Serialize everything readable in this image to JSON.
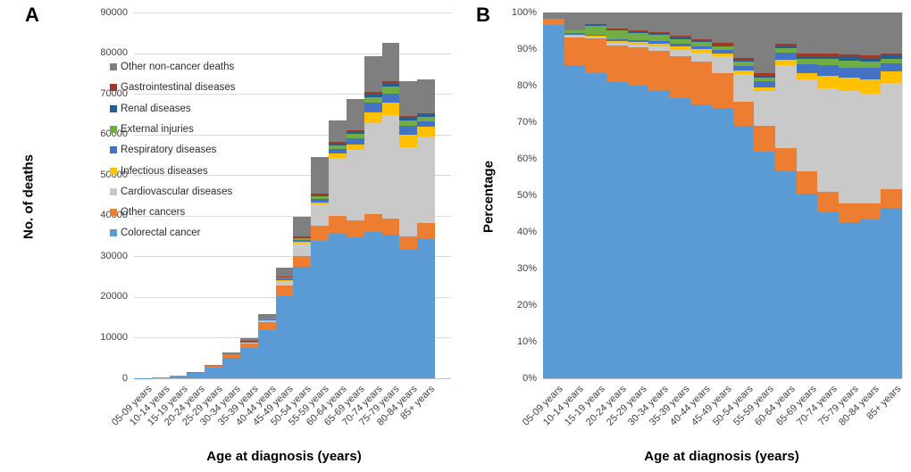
{
  "figure": {
    "panel_a_label": "A",
    "panel_b_label": "B",
    "panel_a_y_title": "No. of deaths",
    "panel_b_y_title": "Percentage",
    "x_title_a": "Age at diagnosis (years)",
    "x_title_b": "Age at diagnosis (years)"
  },
  "legend": {
    "items": [
      {
        "label": "Other non-cancer deaths",
        "color": "#7f7f7f"
      },
      {
        "label": "Gastrointestinal diseases",
        "color": "#9e3a26"
      },
      {
        "label": "Renal diseases",
        "color": "#255e91"
      },
      {
        "label": "External injuries",
        "color": "#70ad47"
      },
      {
        "label": "Respiratory diseases",
        "color": "#4472c4"
      },
      {
        "label": "Infectious diseases",
        "color": "#ffc000"
      },
      {
        "label": "Cardiovascular diseases",
        "color": "#c9c9c9"
      },
      {
        "label": "Other cancers",
        "color": "#ed7d31"
      },
      {
        "label": "Colorectal cancer",
        "color": "#5b9bd5"
      }
    ]
  },
  "chart_data": {
    "type": "bar",
    "stacked": true,
    "categories": [
      "05-09 years",
      "10-14 years",
      "15-19 years",
      "20-24 years",
      "25-29 years",
      "30-34 years",
      "35-39 years",
      "40-44 years",
      "45-49 years",
      "50-54 years",
      "55-59 years",
      "60-64 years",
      "65-69 years",
      "70-74 years",
      "75-79 years",
      "80-84 years",
      "85+ years"
    ],
    "series": [
      {
        "name": "Colorectal cancer",
        "color": "#5b9bd5",
        "values": [
          58,
          214,
          500,
          1215,
          2640,
          4950,
          7500,
          11925,
          20200,
          27460,
          33730,
          35880,
          34740,
          35920,
          35350,
          31700,
          34220
        ]
      },
      {
        "name": "Other cancers",
        "color": "#ed7d31",
        "values": [
          1,
          19,
          57,
          150,
          347,
          693,
          1127,
          1829,
          2594,
          2587,
          3808,
          4128,
          4128,
          4441,
          4047,
          3294,
          3901
        ]
      },
      {
        "name": "Cardiovascular diseases",
        "color": "#c9c9c9",
        "values": [
          0,
          1,
          2,
          9,
          26,
          76,
          176,
          398,
          1229,
          3104,
          5168,
          14288,
          17338,
          22521,
          25441,
          21960,
          21344
        ]
      },
      {
        "name": "Infectious diseases",
        "color": "#ffc000",
        "values": [
          0,
          1,
          3,
          9,
          23,
          50,
          88,
          143,
          218,
          358,
          598,
          953,
          1238,
          2617,
          2974,
          2928,
          2355
        ]
      },
      {
        "name": "Respiratory diseases",
        "color": "#4472c4",
        "values": [
          0,
          1,
          2,
          8,
          17,
          38,
          69,
          127,
          246,
          517,
          925,
          1270,
          1651,
          2379,
          2313,
          2196,
          1472
        ]
      },
      {
        "name": "External injuries",
        "color": "#70ad47",
        "values": [
          0,
          2,
          14,
          35,
          66,
          107,
          137,
          191,
          273,
          398,
          544,
          762,
          963,
          1348,
          1652,
          1391,
          957
        ]
      },
      {
        "name": "Renal diseases",
        "color": "#255e91",
        "values": [
          0,
          0,
          1,
          3,
          7,
          19,
          29,
          48,
          109,
          159,
          272,
          445,
          550,
          555,
          743,
          659,
          736
        ]
      },
      {
        "name": "Gastrointestinal diseases",
        "color": "#9e3a26",
        "values": [
          0,
          0,
          2,
          6,
          13,
          32,
          49,
          95,
          164,
          239,
          381,
          381,
          482,
          714,
          661,
          439,
          294
        ]
      },
      {
        "name": "Other non-cancer deaths",
        "color": "#7f7f7f",
        "values": [
          1,
          12,
          19,
          65,
          161,
          339,
          628,
          1144,
          2265,
          4976,
          8976,
          5398,
          7706,
          8802,
          9416,
          8638,
          8317
        ]
      }
    ],
    "panels": [
      {
        "id": "A",
        "mode": "absolute",
        "ylabel": "No. of deaths",
        "ylim": [
          0,
          90000
        ],
        "y_tick_labels": [
          "0",
          "10000",
          "20000",
          "30000",
          "40000",
          "50000",
          "60000",
          "70000",
          "80000",
          "90000"
        ]
      },
      {
        "id": "B",
        "mode": "percent",
        "ylabel": "Percentage",
        "ylim": [
          0,
          100
        ],
        "y_tick_labels": [
          "0%",
          "10%",
          "20%",
          "30%",
          "40%",
          "50%",
          "60%",
          "70%",
          "80%",
          "90%",
          "100%"
        ]
      }
    ],
    "xlabel": "Age at diagnosis (years)",
    "grid": true,
    "legend_position": "inside-top-left-of-panel-A"
  }
}
